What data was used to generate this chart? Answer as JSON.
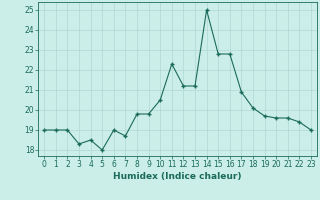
{
  "x": [
    0,
    1,
    2,
    3,
    4,
    5,
    6,
    7,
    8,
    9,
    10,
    11,
    12,
    13,
    14,
    15,
    16,
    17,
    18,
    19,
    20,
    21,
    22,
    23
  ],
  "y": [
    19,
    19,
    19,
    18.3,
    18.5,
    18.0,
    19.0,
    18.7,
    19.8,
    19.8,
    20.5,
    22.3,
    21.2,
    21.2,
    25.0,
    22.8,
    22.8,
    20.9,
    20.1,
    19.7,
    19.6,
    19.6,
    19.4,
    19.0
  ],
  "line_color": "#1a6b5a",
  "marker": "+",
  "marker_size": 3,
  "marker_lw": 1.0,
  "bg_color": "#cceee8",
  "grid_color": "#b0d8d4",
  "xlabel": "Humidex (Indice chaleur)",
  "xlim": [
    -0.5,
    23.5
  ],
  "ylim": [
    17.7,
    25.4
  ],
  "yticks": [
    18,
    19,
    20,
    21,
    22,
    23,
    24,
    25
  ],
  "xticks": [
    0,
    1,
    2,
    3,
    4,
    5,
    6,
    7,
    8,
    9,
    10,
    11,
    12,
    13,
    14,
    15,
    16,
    17,
    18,
    19,
    20,
    21,
    22,
    23
  ],
  "xtick_labels": [
    "0",
    "1",
    "2",
    "3",
    "4",
    "5",
    "6",
    "7",
    "8",
    "9",
    "10",
    "11",
    "12",
    "13",
    "14",
    "15",
    "16",
    "17",
    "18",
    "19",
    "20",
    "21",
    "22",
    "23"
  ],
  "tick_fontsize": 5.5,
  "xlabel_fontsize": 6.5
}
